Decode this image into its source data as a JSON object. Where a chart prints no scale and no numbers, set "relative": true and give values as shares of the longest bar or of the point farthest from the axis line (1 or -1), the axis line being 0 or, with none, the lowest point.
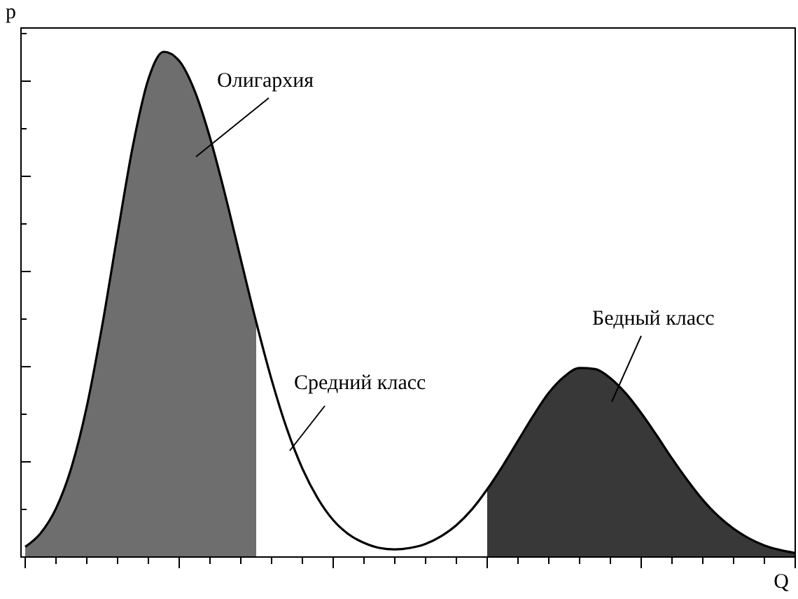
{
  "chart_data": {
    "type": "line",
    "relative": true,
    "xlabel": "Q",
    "ylabel": "p",
    "annotations": [
      "Олигархия",
      "Средний класс",
      "Бедный класс"
    ],
    "categories": [
      null,
      null,
      null,
      null,
      null,
      null,
      null,
      null,
      null,
      null,
      null,
      null,
      null,
      null,
      null,
      null,
      null,
      null,
      null,
      null,
      null,
      null,
      null,
      null,
      null,
      null,
      null,
      null,
      null,
      null,
      null,
      null,
      null,
      null,
      null,
      null,
      null,
      null,
      null,
      null,
      null,
      null,
      null,
      null,
      null,
      null,
      null,
      null,
      null,
      null,
      null
    ],
    "series": [
      {
        "color": "#000000",
        "values": [
          0.02,
          0.047,
          0.096,
          0.177,
          0.298,
          0.458,
          0.64,
          0.815,
          0.946,
          1,
          0.982,
          0.923,
          0.83,
          0.715,
          0.589,
          0.465,
          0.351,
          0.253,
          0.175,
          0.116,
          0.073,
          0.045,
          0.028,
          0.018,
          0.015,
          0.018,
          0.026,
          0.041,
          0.063,
          0.094,
          0.134,
          0.18,
          0.23,
          0.28,
          0.325,
          0.357,
          0.374,
          0.372,
          0.354,
          0.324,
          0.285,
          0.241,
          0.195,
          0.152,
          0.113,
          0.081,
          0.056,
          0.037,
          0.023,
          0.014,
          0.008
        ]
      },
      {
        "type": "area",
        "color": "#6e6e6e",
        "values": [
          0.02,
          0.047,
          0.096,
          0.177,
          0.298,
          0.458,
          0.64,
          0.815,
          0.946,
          1,
          0.982,
          0.923,
          0.83,
          0.715,
          0.589,
          0.465,
          null,
          null,
          null,
          null,
          null,
          null,
          null,
          null,
          null,
          null,
          null,
          null,
          null,
          null,
          null,
          null,
          null,
          null,
          null,
          null,
          null,
          null,
          null,
          null,
          null,
          null,
          null,
          null,
          null,
          null,
          null,
          null,
          null,
          null,
          null
        ]
      },
      {
        "type": "area",
        "color": "#383838",
        "values": [
          null,
          null,
          null,
          null,
          null,
          null,
          null,
          null,
          null,
          null,
          null,
          null,
          null,
          null,
          null,
          null,
          null,
          null,
          null,
          null,
          null,
          null,
          null,
          null,
          null,
          null,
          null,
          null,
          null,
          null,
          0.134,
          0.18,
          0.23,
          0.28,
          0.325,
          0.357,
          0.374,
          0.372,
          0.354,
          0.324,
          0.285,
          0.241,
          0.195,
          0.152,
          0.113,
          0.081,
          0.056,
          0.037,
          0.023,
          0.014,
          0.008
        ]
      }
    ]
  }
}
